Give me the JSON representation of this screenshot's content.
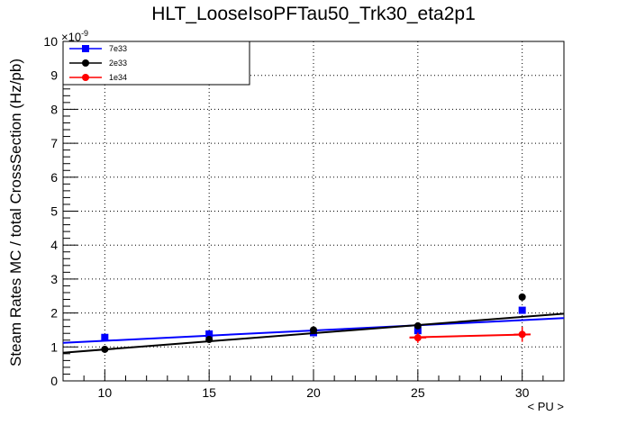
{
  "chart_data": {
    "type": "scatter",
    "title": "HLT_LooseIsoPFTau50_Trk30_eta2p1",
    "xlabel": "< PU >",
    "ylabel": "Steam Rates MC / total CrossSection (Hz/pb)",
    "y_exponent": "×10",
    "y_exponent_power": "-9",
    "xlim": [
      8,
      32
    ],
    "ylim": [
      0,
      10
    ],
    "x_ticks": [
      10,
      15,
      20,
      25,
      30
    ],
    "y_ticks": [
      0,
      1,
      2,
      3,
      4,
      5,
      6,
      7,
      8,
      9,
      10
    ],
    "grid": true,
    "legend_position": "top-left",
    "series": [
      {
        "name": "7e33",
        "color": "#0000ff",
        "marker": "square",
        "x": [
          10,
          15,
          20,
          25,
          30
        ],
        "y": [
          1.28,
          1.38,
          1.42,
          1.48,
          2.08
        ],
        "fit": {
          "x": [
            8,
            32
          ],
          "y": [
            1.12,
            1.85
          ]
        }
      },
      {
        "name": "2e33",
        "color": "#000000",
        "marker": "circle",
        "x": [
          10,
          15,
          20,
          25,
          30
        ],
        "y": [
          0.93,
          1.22,
          1.5,
          1.62,
          2.47
        ],
        "fit": {
          "x": [
            8,
            32
          ],
          "y": [
            0.83,
            1.98
          ]
        }
      },
      {
        "name": "1e34",
        "color": "#ff0000",
        "marker": "circle",
        "x": [
          25,
          30
        ],
        "y": [
          1.27,
          1.37
        ],
        "xerr": [
          0.4,
          0.4
        ],
        "yerr": [
          0.15,
          0.22
        ],
        "fit": {
          "x": [
            24.6,
            30.4
          ],
          "y": [
            1.28,
            1.37
          ]
        }
      }
    ]
  }
}
